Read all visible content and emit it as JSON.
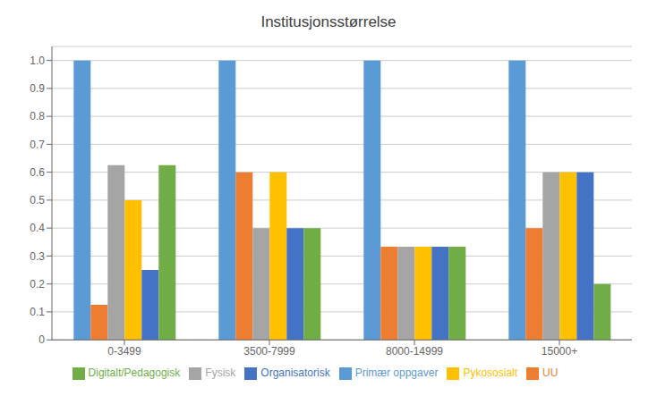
{
  "chart_data": {
    "type": "bar",
    "title": "Institusjonsstørrelse",
    "categories": [
      "0-3499",
      "3500-7999",
      "8000-14999",
      "15000+"
    ],
    "series": [
      {
        "name": "Primær oppgaver",
        "color": "#5B9BD5",
        "values": [
          1.0,
          1.0,
          1.0,
          1.0
        ]
      },
      {
        "name": "UU",
        "color": "#ED7D31",
        "values": [
          0.125,
          0.6,
          0.333,
          0.4
        ]
      },
      {
        "name": "Fysisk",
        "color": "#A5A5A5",
        "values": [
          0.625,
          0.4,
          0.333,
          0.6
        ]
      },
      {
        "name": "Pykososialt",
        "color": "#FFC000",
        "values": [
          0.5,
          0.6,
          0.333,
          0.6
        ]
      },
      {
        "name": "Organisatorisk",
        "color": "#4472C4",
        "values": [
          0.25,
          0.4,
          0.333,
          0.6
        ]
      },
      {
        "name": "Digitalt/Pedagogisk",
        "color": "#70AD47",
        "values": [
          0.625,
          0.4,
          0.333,
          0.2
        ]
      }
    ],
    "ylim": [
      0,
      1.05
    ],
    "yticks": [
      0,
      0.1,
      0.2,
      0.3,
      0.4,
      0.5,
      0.6,
      0.7,
      0.8,
      0.9,
      {
        "value": 1.0,
        "label": "1.0"
      }
    ],
    "grid": true,
    "legend": "bottom"
  }
}
